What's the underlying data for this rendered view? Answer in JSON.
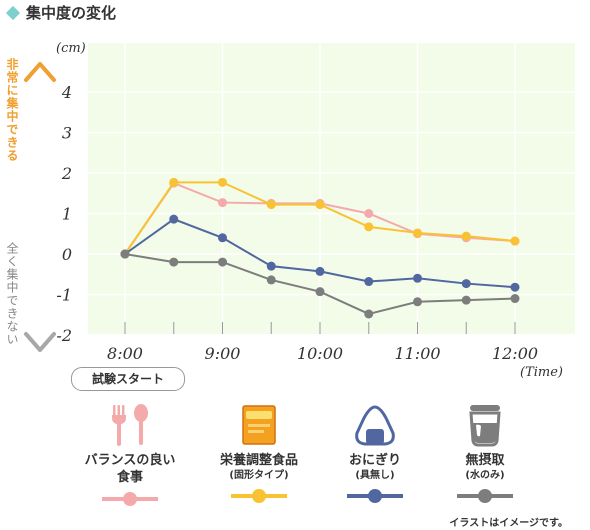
{
  "title": "集中度の変化",
  "vertical_labels": {
    "top": "非常に集中できる",
    "bottom": "全く集中できない"
  },
  "start_badge": "試験スタート",
  "note": "イラストはイメージです。",
  "colors": {
    "background": "#f3fbe9",
    "grid": "#ffffff",
    "axis_arrow_top": "#f0a030",
    "axis_arrow_bottom": "#a0a0a0",
    "accent": "#7fcfcf"
  },
  "chart_data": {
    "type": "line",
    "title": "",
    "xlabel": "(Time)",
    "ylabel": "(cm)",
    "xlim": [
      "8:00",
      "12:00"
    ],
    "ylim": [
      -2,
      5
    ],
    "grid": true,
    "legend_placement": "bottom",
    "x": [
      "8:00",
      "8:30",
      "9:00",
      "9:30",
      "10:00",
      "10:30",
      "11:00",
      "11:30",
      "12:00"
    ],
    "x_tick_labels": [
      "8:00",
      "9:00",
      "10:00",
      "11:00",
      "12:00"
    ],
    "y_tick_labels": [
      "4",
      "3",
      "2",
      "1",
      "0",
      "-1",
      "-2"
    ],
    "series": [
      {
        "name": "バランスの良い食事",
        "color": "#f4aaaa",
        "values": [
          0,
          1.75,
          1.27,
          1.25,
          1.25,
          1.0,
          0.5,
          0.4,
          0.32
        ]
      },
      {
        "name": "栄養調整食品",
        "color": "#f9c233",
        "values": [
          0,
          1.77,
          1.77,
          1.22,
          1.22,
          0.67,
          0.52,
          0.44,
          0.32
        ]
      },
      {
        "name": "おにぎり",
        "color": "#5067a0",
        "values": [
          0,
          0.86,
          0.4,
          -0.3,
          -0.43,
          -0.68,
          -0.6,
          -0.73,
          -0.82
        ]
      },
      {
        "name": "無摂取",
        "color": "#7d7d7d",
        "values": [
          0,
          -0.2,
          -0.2,
          -0.64,
          -0.93,
          -1.48,
          -1.18,
          -1.14,
          -1.1
        ]
      }
    ]
  },
  "legend": [
    {
      "label": "バランスの良い\n食事",
      "sub": "",
      "icon": "fork-spoon-icon",
      "color": "#f4aaaa"
    },
    {
      "label": "栄養調整食品",
      "sub": "(固形タイプ)",
      "icon": "nutrition-bar-box-icon",
      "color": "#f9c233"
    },
    {
      "label": "おにぎり",
      "sub": "(具無し)",
      "icon": "onigiri-icon",
      "color": "#5067a0"
    },
    {
      "label": "無摂取",
      "sub": "(水のみ)",
      "icon": "water-glass-icon",
      "color": "#7d7d7d"
    }
  ]
}
